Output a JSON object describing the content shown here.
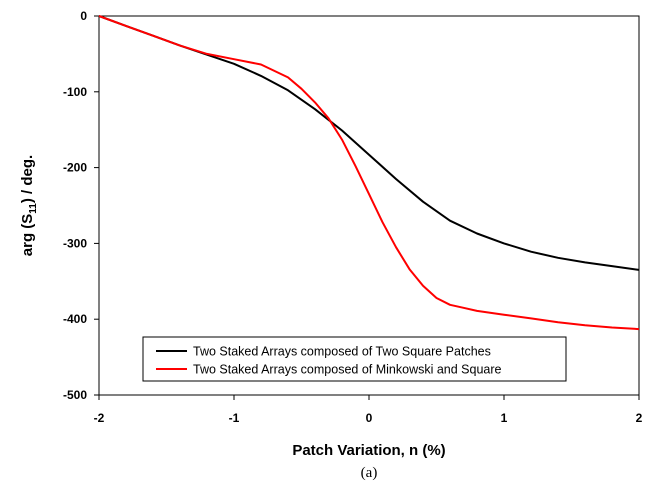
{
  "chart_data": {
    "type": "line",
    "xlabel": "Patch Variation, n (%)",
    "ylabel_main": "arg (S",
    "ylabel_sub": "11",
    "ylabel_end": ") / deg.",
    "caption": "(a)",
    "xlim": [
      -2,
      2
    ],
    "ylim": [
      -500,
      0
    ],
    "xticks": [
      -2,
      -1,
      0,
      1,
      2
    ],
    "yticks": [
      0,
      -100,
      -200,
      -300,
      -400,
      -500
    ],
    "grid": false,
    "legend_position": "bottom-center",
    "series": [
      {
        "name": "Two Staked Arrays composed of Two Square Patches",
        "color": "#000000",
        "x": [
          -2,
          -1.8,
          -1.6,
          -1.4,
          -1.2,
          -1.0,
          -0.8,
          -0.6,
          -0.4,
          -0.2,
          0.0,
          0.2,
          0.4,
          0.6,
          0.8,
          1.0,
          1.2,
          1.4,
          1.6,
          1.8,
          2.0
        ],
        "y": [
          0,
          -13,
          -26,
          -39,
          -51,
          -63,
          -79,
          -98,
          -123,
          -151,
          -183,
          -215,
          -245,
          -270,
          -287,
          -300,
          -311,
          -319,
          -325,
          -330,
          -335
        ]
      },
      {
        "name": "Two Staked Arrays composed of Minkowski and Square",
        "color": "#ff0000",
        "x": [
          -2,
          -1.8,
          -1.6,
          -1.4,
          -1.2,
          -1.0,
          -0.8,
          -0.6,
          -0.5,
          -0.4,
          -0.3,
          -0.2,
          -0.1,
          0.0,
          0.1,
          0.2,
          0.3,
          0.4,
          0.5,
          0.6,
          0.7,
          0.8,
          1.0,
          1.2,
          1.4,
          1.6,
          1.8,
          2.0
        ],
        "y": [
          0,
          -13,
          -26,
          -39,
          -50,
          -57,
          -64,
          -81,
          -96,
          -114,
          -135,
          -163,
          -198,
          -235,
          -272,
          -305,
          -334,
          -356,
          -372,
          -381,
          -385,
          -389,
          -394,
          -399,
          -404,
          -408,
          -411,
          -413
        ]
      }
    ]
  }
}
